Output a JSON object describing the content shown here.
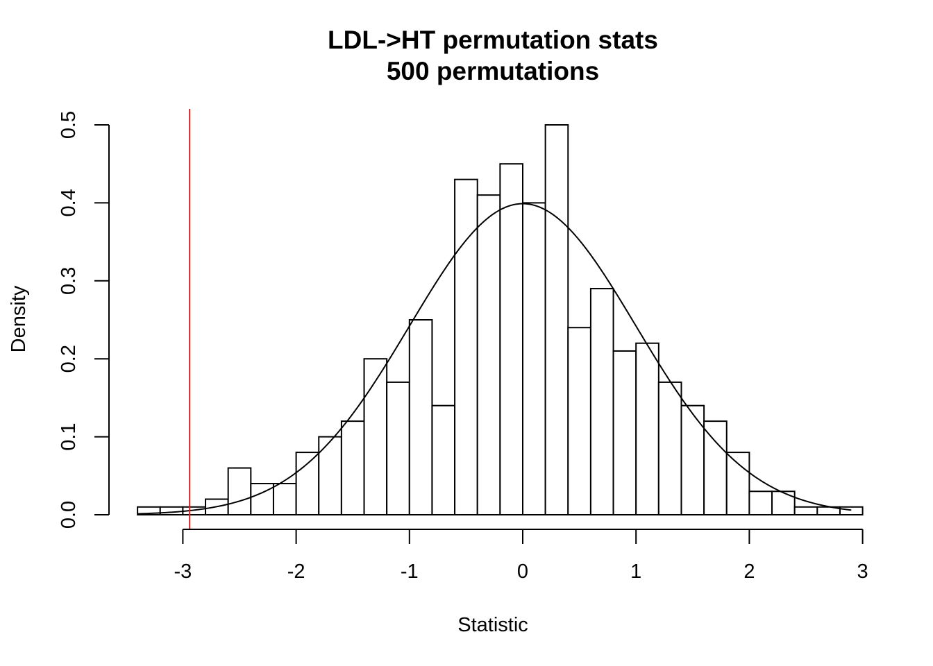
{
  "chart_data": {
    "type": "bar",
    "title": "LDL->HT permutation stats",
    "subtitle": "500 permutations",
    "xlabel": "Statistic",
    "ylabel": "Density",
    "xlim": [
      -3,
      3
    ],
    "ylim": [
      0,
      0.5
    ],
    "x_ticks": [
      "-3",
      "-2",
      "-1",
      "0",
      "1",
      "2",
      "3"
    ],
    "y_ticks": [
      "0.0",
      "0.1",
      "0.2",
      "0.3",
      "0.4",
      "0.5"
    ],
    "bin_width": 0.2,
    "bin_starts": [
      -3.4,
      -3.2,
      -3.0,
      -2.8,
      -2.6,
      -2.4,
      -2.2,
      -2.0,
      -1.8,
      -1.6,
      -1.4,
      -1.2,
      -1.0,
      -0.8,
      -0.6,
      -0.4,
      -0.2,
      0.0,
      0.2,
      0.4,
      0.6,
      0.8,
      1.0,
      1.2,
      1.4,
      1.6,
      1.8,
      2.0,
      2.2,
      2.4,
      2.6,
      2.8
    ],
    "densities": [
      0.01,
      0.01,
      0.01,
      0.02,
      0.06,
      0.04,
      0.04,
      0.08,
      0.1,
      0.12,
      0.2,
      0.17,
      0.25,
      0.14,
      0.43,
      0.41,
      0.45,
      0.4,
      0.5,
      0.24,
      0.29,
      0.21,
      0.22,
      0.17,
      0.14,
      0.12,
      0.08,
      0.03,
      0.03,
      0.01,
      0.01,
      0.01
    ],
    "overlay_curve": {
      "type": "normal_density",
      "mean": 0,
      "sd": 1,
      "range": [
        -3.4,
        2.9
      ],
      "color": "#000000"
    },
    "reference_line": {
      "x": -2.94,
      "color": "#e41a1c"
    },
    "grid": false
  }
}
